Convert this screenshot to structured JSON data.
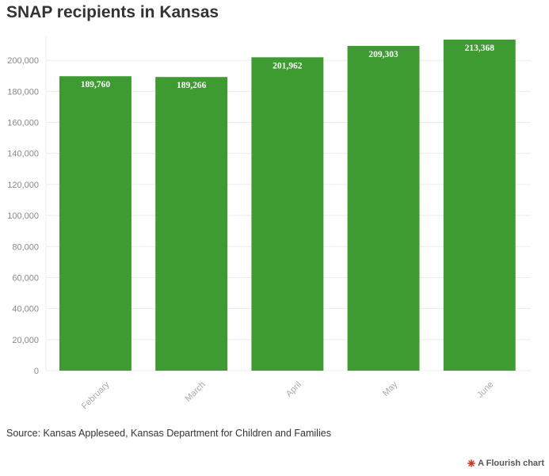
{
  "title": "SNAP recipients in Kansas",
  "source": "Source: Kansas Appleseed, Kansas Department for Children and Families",
  "credit": "A Flourish chart",
  "colors": {
    "bar": "#3e9b32",
    "grid": "#ececec",
    "tick": "#888888",
    "category": "#aaaaaa",
    "label": "#ffffff"
  },
  "chart_data": {
    "type": "bar",
    "categories": [
      "February",
      "March",
      "April",
      "May",
      "June"
    ],
    "values": [
      189760,
      189266,
      201962,
      209303,
      213368
    ],
    "value_labels": [
      "189,760",
      "189,266",
      "201,962",
      "209,303",
      "213,368"
    ],
    "ylim": [
      0,
      213368
    ],
    "yticks": [
      0,
      20000,
      40000,
      60000,
      80000,
      100000,
      120000,
      140000,
      160000,
      180000,
      200000
    ],
    "ytick_labels": [
      "0",
      "20,000",
      "40,000",
      "60,000",
      "80,000",
      "100,000",
      "120,000",
      "140,000",
      "160,000",
      "180,000",
      "200,000"
    ],
    "xlabel": "",
    "ylabel": "",
    "grid": true,
    "legend": "none"
  }
}
